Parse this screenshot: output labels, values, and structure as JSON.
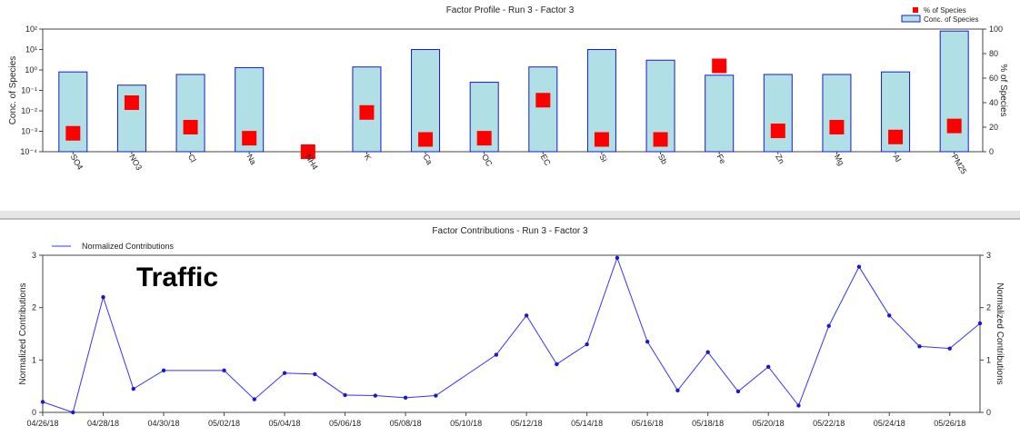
{
  "chart_data": [
    {
      "type": "bar",
      "title": "Factor Profile - Run 3 - Factor 3",
      "ylabel": "Conc. of Species",
      "y2label": "% of Species",
      "yscale": "log",
      "ylim": [
        0.0001,
        100
      ],
      "y_ticks": [
        "10⁻⁴",
        "10⁻³",
        "10⁻²",
        "10⁻¹",
        "10⁰",
        "10¹",
        "10²"
      ],
      "y2lim": [
        0,
        100
      ],
      "y2_ticks": [
        "0",
        "20",
        "40",
        "60",
        "80",
        "100"
      ],
      "categories": [
        "SO4",
        "NO3",
        "Cl",
        "Na",
        "NH4",
        "K",
        "Ca",
        "OC",
        "EC",
        "Si",
        "Sb",
        "Fe",
        "Zn",
        "Mg",
        "Al",
        "PM25"
      ],
      "legend_position": "top-right",
      "series": [
        {
          "name": "Conc. of Species",
          "kind": "bar",
          "color": "#b0e0e6",
          "edge": "#1a1acc",
          "values": [
            0.8,
            0.18,
            0.6,
            1.3,
            null,
            1.4,
            10.0,
            0.25,
            1.4,
            10.0,
            3.0,
            0.55,
            0.6,
            0.6,
            0.8,
            80.0
          ]
        },
        {
          "name": "% of Species",
          "kind": "marker",
          "color": "#ff0000",
          "axis": "right",
          "values": [
            15,
            40,
            20,
            11,
            0,
            32,
            10,
            11,
            42,
            10,
            10,
            70,
            17,
            20,
            12,
            21
          ]
        }
      ]
    },
    {
      "type": "line",
      "title": "Factor Contributions - Run 3 - Factor 3",
      "ylabel": "Normalized Contributions",
      "y2label": "Normalized Contributions",
      "ylim": [
        0,
        3
      ],
      "y_ticks": [
        "0",
        "1",
        "2",
        "3"
      ],
      "x_tick_labels": [
        "04/26/18",
        "04/28/18",
        "04/30/18",
        "05/02/18",
        "05/04/18",
        "05/06/18",
        "05/08/18",
        "05/10/18",
        "05/12/18",
        "05/14/18",
        "05/16/18",
        "05/18/18",
        "05/20/18",
        "05/22/18",
        "05/24/18",
        "05/26/18"
      ],
      "xlim": [
        "04/26/18",
        "05/27/18"
      ],
      "legend_position": "top-left",
      "annotation": "Traffic",
      "series": [
        {
          "name": "Normalized Contributions",
          "color": "#3333ff",
          "x": [
            "04/26/18",
            "04/27/18",
            "04/28/18",
            "04/29/18",
            "04/30/18",
            "05/02/18",
            "05/03/18",
            "05/04/18",
            "05/05/18",
            "05/06/18",
            "05/07/18",
            "05/08/18",
            "05/09/18",
            "05/11/18",
            "05/12/18",
            "05/13/18",
            "05/14/18",
            "05/15/18",
            "05/16/18",
            "05/17/18",
            "05/18/18",
            "05/19/18",
            "05/20/18",
            "05/21/18",
            "05/22/18",
            "05/23/18",
            "05/24/18",
            "05/25/18",
            "05/26/18",
            "05/27/18"
          ],
          "y": [
            0.2,
            0.0,
            2.2,
            0.45,
            0.8,
            0.8,
            0.25,
            0.75,
            0.73,
            0.33,
            0.32,
            0.28,
            0.32,
            1.1,
            1.85,
            0.92,
            1.3,
            2.95,
            1.35,
            0.42,
            1.15,
            0.4,
            0.87,
            0.13,
            1.65,
            2.78,
            1.85,
            1.26,
            1.22,
            1.7
          ]
        }
      ]
    }
  ]
}
